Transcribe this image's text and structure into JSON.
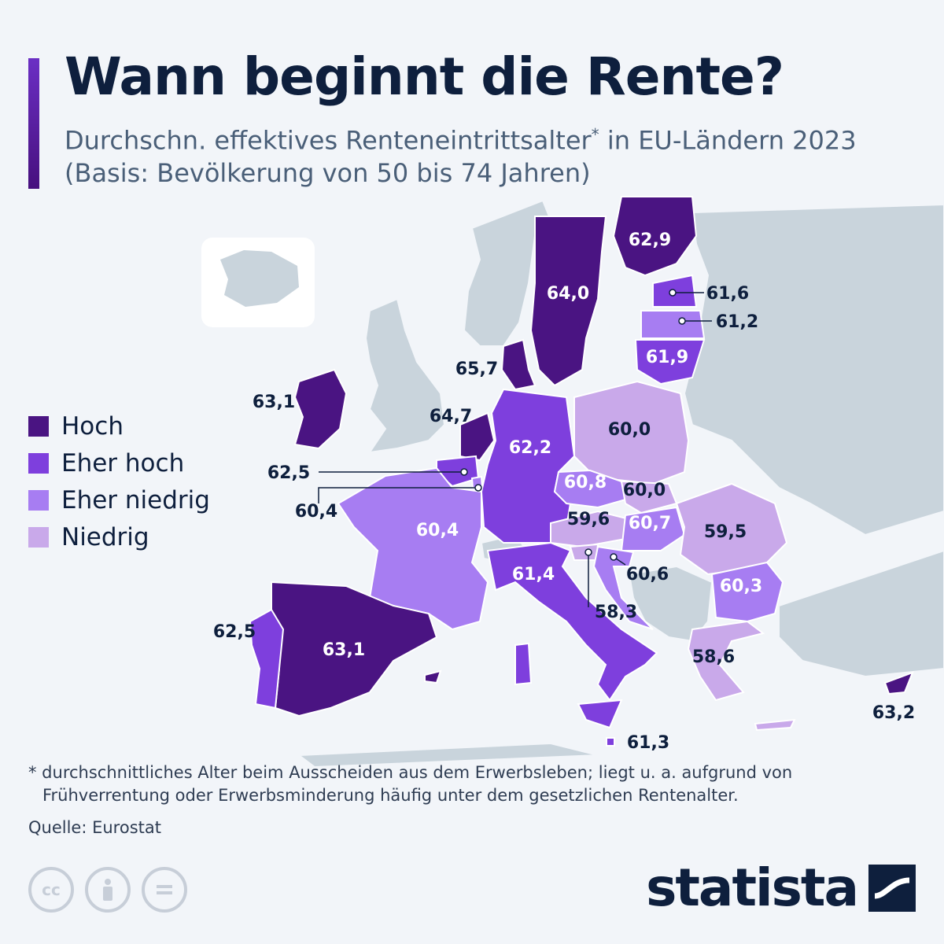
{
  "title": "Wann beginnt die Rente?",
  "subtitle_main": "Durchschn. effektives Renteneintrittsalter",
  "subtitle_star": "*",
  "subtitle_rest": " in EU-Ländern 2023 (Basis: Bevölkerung von 50 bis 74 Jahren)",
  "legend": [
    {
      "label": "Hoch",
      "color": "#4a1482"
    },
    {
      "label": "Eher hoch",
      "color": "#7e3fdd"
    },
    {
      "label": "Eher niedrig",
      "color": "#a77df2"
    },
    {
      "label": "Niedrig",
      "color": "#c9a9ea"
    }
  ],
  "countries": {
    "finland": {
      "value": "62,9",
      "category": "Hoch"
    },
    "sweden": {
      "value": "64,0",
      "category": "Hoch"
    },
    "estonia": {
      "value": "61,6",
      "category": "Eher hoch"
    },
    "latvia": {
      "value": "61,2",
      "category": "Eher niedrig"
    },
    "lithuania": {
      "value": "61,9",
      "category": "Eher hoch"
    },
    "denmark": {
      "value": "65,7",
      "category": "Hoch"
    },
    "ireland": {
      "value": "63,1",
      "category": "Hoch"
    },
    "netherlands": {
      "value": "64,7",
      "category": "Hoch"
    },
    "belgium": {
      "value": "62,5",
      "category": "Eher hoch"
    },
    "luxembourg": {
      "value": "60,4",
      "category": "Eher niedrig"
    },
    "germany": {
      "value": "62,2",
      "category": "Eher hoch"
    },
    "poland": {
      "value": "60,0",
      "category": "Niedrig"
    },
    "czechia": {
      "value": "60,8",
      "category": "Eher niedrig"
    },
    "slovakia": {
      "value": "60,0",
      "category": "Niedrig"
    },
    "austria": {
      "value": "59,6",
      "category": "Niedrig"
    },
    "hungary": {
      "value": "60,7",
      "category": "Eher niedrig"
    },
    "romania": {
      "value": "59,5",
      "category": "Niedrig"
    },
    "france": {
      "value": "60,4",
      "category": "Eher niedrig"
    },
    "italy": {
      "value": "61,4",
      "category": "Eher hoch"
    },
    "slovenia": {
      "value": "58,3",
      "category": "Niedrig"
    },
    "croatia": {
      "value": "60,6",
      "category": "Eher niedrig"
    },
    "bulgaria": {
      "value": "60,3",
      "category": "Eher niedrig"
    },
    "greece": {
      "value": "58,6",
      "category": "Niedrig"
    },
    "spain": {
      "value": "63,1",
      "category": "Hoch"
    },
    "portugal": {
      "value": "62,5",
      "category": "Eher hoch"
    },
    "malta": {
      "value": "61,3",
      "category": "Eher hoch"
    },
    "cyprus": {
      "value": "63,2",
      "category": "Hoch"
    }
  },
  "footnote_line1": "* durchschnittliches Alter beim Ausscheiden aus dem Erwerbsleben; liegt u. a. aufgrund von",
  "footnote_line2": "Frühverrentung oder Erwerbsminderung häufig unter dem gesetzlichen Rentenalter.",
  "source": "Quelle: Eurostat",
  "brand": "statista",
  "license_icons": [
    "cc-icon",
    "by-icon",
    "nd-icon"
  ]
}
